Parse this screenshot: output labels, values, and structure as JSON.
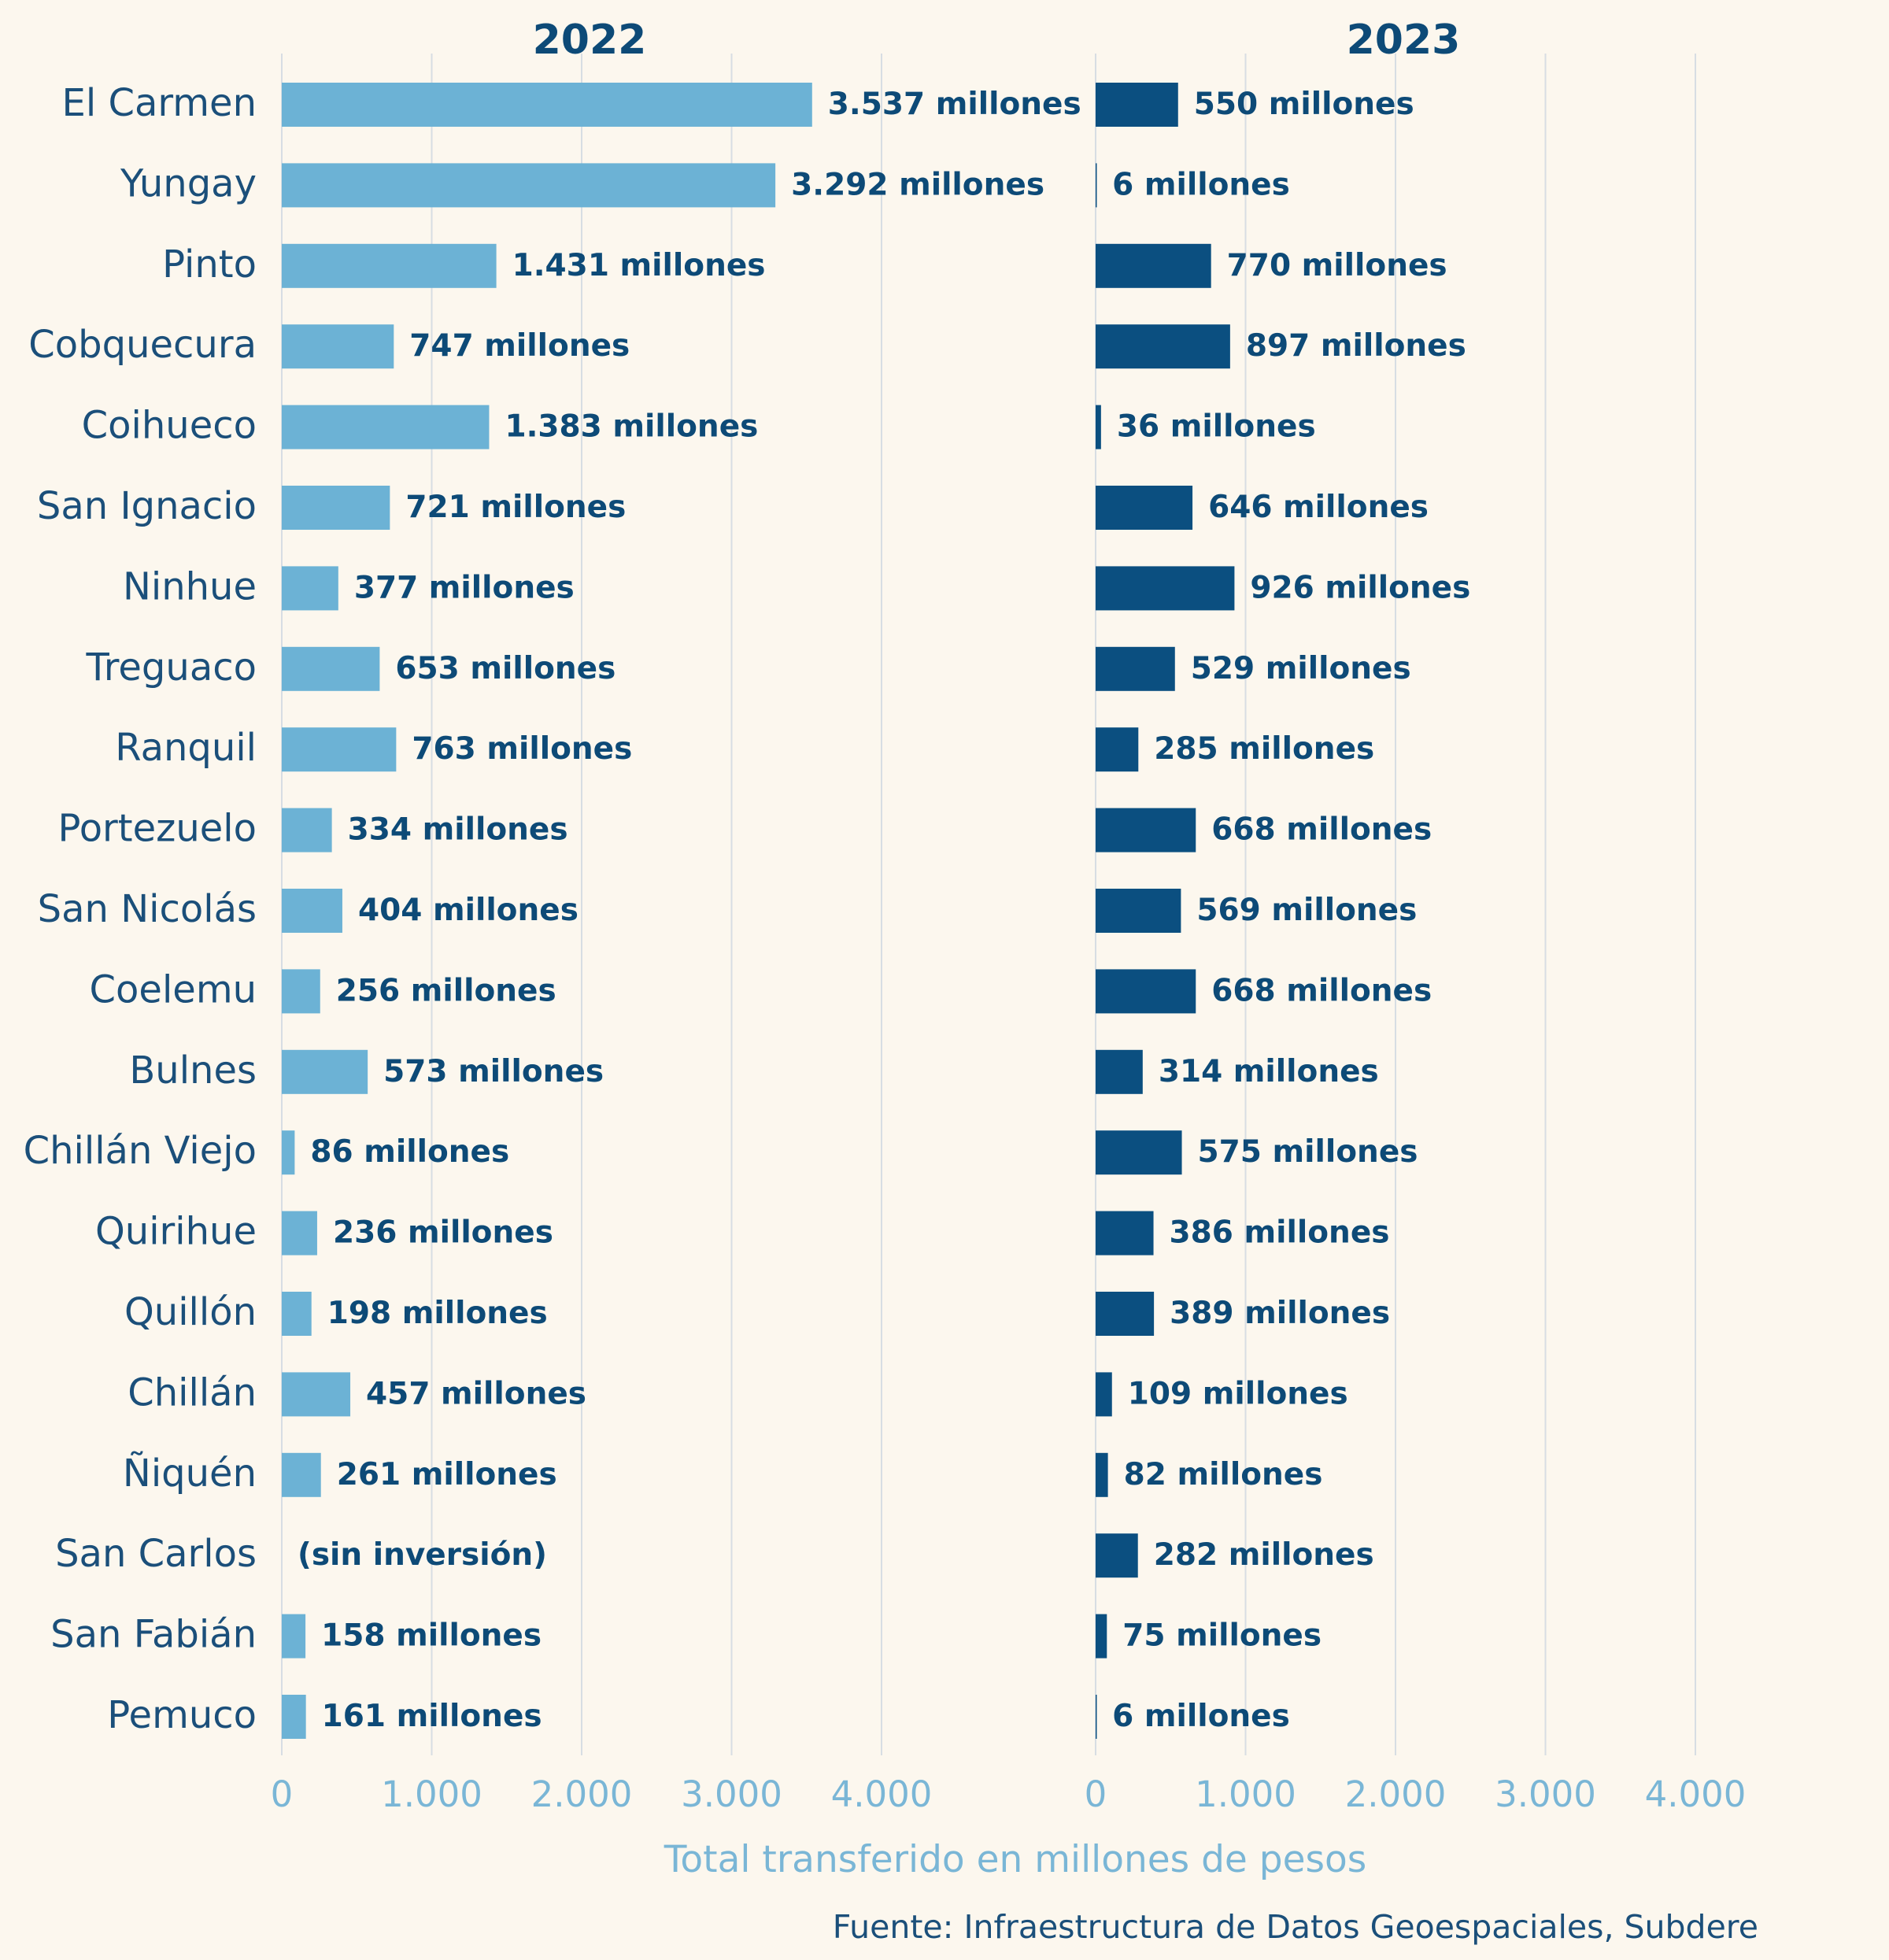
{
  "chart_data": {
    "type": "bar",
    "orientation": "horizontal",
    "categories": [
      "El Carmen",
      "Yungay",
      "Pinto",
      "Cobquecura",
      "Coihueco",
      "San Ignacio",
      "Ninhue",
      "Treguaco",
      "Ranquil",
      "Portezuelo",
      "San Nicolás",
      "Coelemu",
      "Bulnes",
      "Chillán Viejo",
      "Quirihue",
      "Quillón",
      "Chillán",
      "Ñiquén",
      "San Carlos",
      "San Fabián",
      "Pemuco"
    ],
    "series": [
      {
        "name": "2022",
        "color": "#6cb2d5",
        "values": [
          3537,
          3292,
          1431,
          747,
          1383,
          721,
          377,
          653,
          763,
          334,
          404,
          256,
          573,
          86,
          236,
          198,
          457,
          261,
          0,
          158,
          161
        ],
        "labels": [
          "3.537 millones",
          "3.292 millones",
          "1.431 millones",
          "747 millones",
          "1.383 millones",
          "721 millones",
          "377 millones",
          "653 millones",
          "763 millones",
          "334 millones",
          "404 millones",
          "256 millones",
          "573 millones",
          "86 millones",
          "236 millones",
          "198 millones",
          "457 millones",
          "261 millones",
          "(sin inversión)",
          "158 millones",
          "161 millones"
        ]
      },
      {
        "name": "2023",
        "color": "#0b4f80",
        "values": [
          550,
          6,
          770,
          897,
          36,
          646,
          926,
          529,
          285,
          668,
          569,
          668,
          314,
          575,
          386,
          389,
          109,
          82,
          282,
          75,
          6
        ],
        "labels": [
          "550 millones",
          "6 millones",
          "770 millones",
          "897 millones",
          "36 millones",
          "646 millones",
          "926 millones",
          "529 millones",
          "285 millones",
          "668 millones",
          "569 millones",
          "668 millones",
          "314 millones",
          "575 millones",
          "386 millones",
          "389 millones",
          "109 millones",
          "82 millones",
          "282 millones",
          "75 millones",
          "6 millones"
        ]
      }
    ],
    "xlim": [
      0,
      4400
    ],
    "xticks": [
      0,
      1000,
      2000,
      3000,
      4000
    ],
    "xtick_labels": [
      "0",
      "1.000",
      "2.000",
      "3.000",
      "4.000"
    ],
    "xlabel": "Total transferido en millones de pesos",
    "source": "Fuente: Infraestructura de Datos Geoespaciales, Subdere",
    "grid": true
  }
}
